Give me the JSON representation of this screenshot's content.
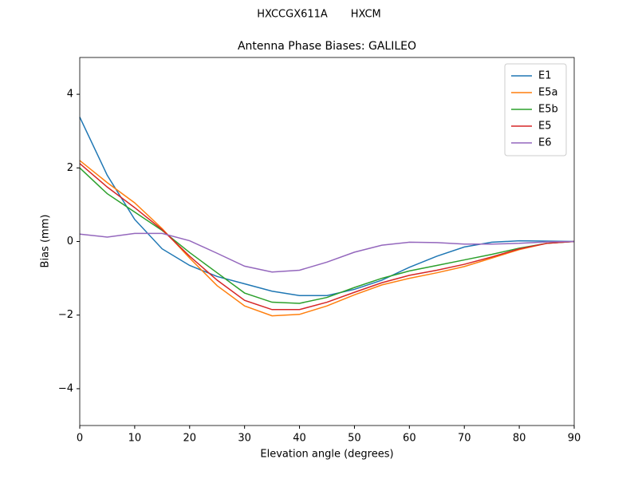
{
  "chart_data": {
    "type": "line",
    "suptitle": "HXCCGX611A       HXCM",
    "title": "Antenna Phase Biases: GALILEO",
    "x_label": "Elevation angle (degrees)",
    "y_label": "Bias (mm)",
    "x": [
      0,
      5,
      10,
      15,
      20,
      25,
      30,
      35,
      40,
      45,
      50,
      55,
      60,
      65,
      70,
      75,
      80,
      85,
      90
    ],
    "series": [
      {
        "name": "E1",
        "color": "#1f77b4",
        "values": [
          3.38,
          1.8,
          0.6,
          -0.2,
          -0.65,
          -0.95,
          -1.15,
          -1.35,
          -1.47,
          -1.47,
          -1.3,
          -1.05,
          -0.7,
          -0.4,
          -0.15,
          -0.02,
          0.02,
          0.01,
          0
        ]
      },
      {
        "name": "E5a",
        "color": "#ff7f0e",
        "values": [
          2.2,
          1.6,
          1.05,
          0.35,
          -0.45,
          -1.2,
          -1.75,
          -2.02,
          -1.98,
          -1.75,
          -1.45,
          -1.18,
          -1.0,
          -0.85,
          -0.68,
          -0.45,
          -0.22,
          -0.05,
          0
        ]
      },
      {
        "name": "E5b",
        "color": "#2ca02c",
        "values": [
          2.0,
          1.3,
          0.8,
          0.3,
          -0.3,
          -0.85,
          -1.4,
          -1.65,
          -1.68,
          -1.52,
          -1.25,
          -1.0,
          -0.8,
          -0.65,
          -0.5,
          -0.35,
          -0.18,
          -0.05,
          0
        ]
      },
      {
        "name": "E5",
        "color": "#d62728",
        "values": [
          2.12,
          1.48,
          0.92,
          0.32,
          -0.4,
          -1.05,
          -1.6,
          -1.85,
          -1.85,
          -1.65,
          -1.38,
          -1.12,
          -0.92,
          -0.78,
          -0.62,
          -0.42,
          -0.2,
          -0.05,
          0
        ]
      },
      {
        "name": "E6",
        "color": "#9467bd",
        "values": [
          0.2,
          0.12,
          0.22,
          0.22,
          0.02,
          -0.32,
          -0.67,
          -0.83,
          -0.78,
          -0.56,
          -0.29,
          -0.1,
          -0.02,
          -0.03,
          -0.07,
          -0.07,
          -0.05,
          -0.01,
          0
        ]
      }
    ],
    "xlim": [
      0,
      90
    ],
    "xticks": [
      0,
      10,
      20,
      30,
      40,
      50,
      60,
      70,
      80,
      90
    ],
    "ylim": [
      -5,
      5
    ],
    "yticks": [
      {
        "value": -4,
        "label": "−4"
      },
      {
        "value": -2,
        "label": "−2"
      },
      0,
      2,
      4
    ],
    "legend": "upper right",
    "grid": false
  }
}
